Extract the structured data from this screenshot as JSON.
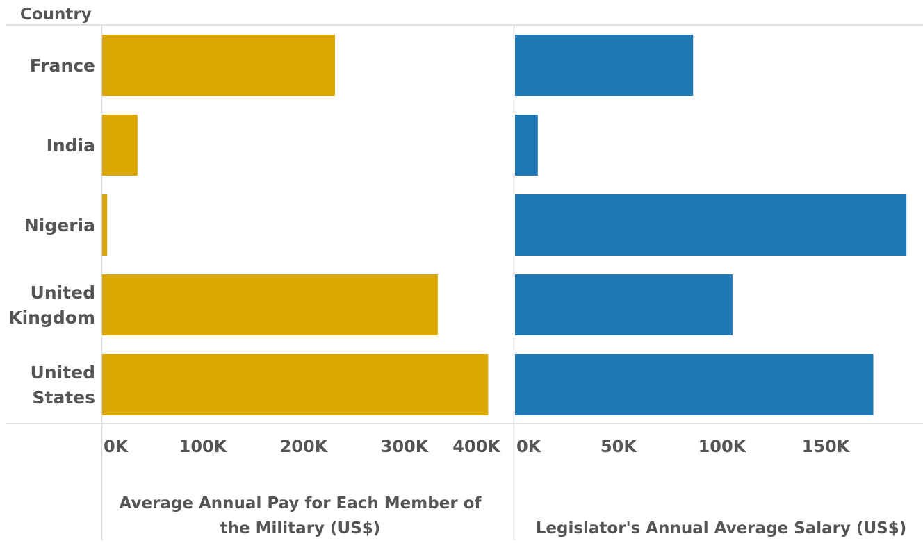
{
  "chart_data": {
    "type": "bar",
    "orientation": "horizontal",
    "row_header": "Country",
    "categories": [
      [
        "France"
      ],
      [
        "India"
      ],
      [
        "Nigeria"
      ],
      [
        "United",
        "Kingdom"
      ],
      [
        "United",
        "States"
      ]
    ],
    "panels": [
      {
        "name": "Average Annual Pay for Each Member of the Military (US$)",
        "axis_title_lines": [
          "Average Annual Pay for Each Member of",
          "the Military (US$)"
        ],
        "color": "#DAA800",
        "values": [
          231000,
          35000,
          5000,
          333000,
          383000
        ],
        "xlim": [
          0,
          400000
        ],
        "ticks": [
          0,
          100000,
          200000,
          300000,
          400000
        ],
        "tick_labels": [
          "0K",
          "100K",
          "200K",
          "300K",
          "400K"
        ]
      },
      {
        "name": "Legislator's Annual Average Salary (US$)",
        "axis_title_lines": [
          "Legislator's Annual Average Salary (US$)"
        ],
        "color": "#1F77B4",
        "values": [
          86000,
          11000,
          189000,
          105000,
          173000
        ],
        "xlim": [
          0,
          197000
        ],
        "ticks": [
          0,
          50000,
          100000,
          150000
        ],
        "tick_labels": [
          "0K",
          "50K",
          "100K",
          "150K"
        ]
      }
    ],
    "grid": false,
    "legend": "none"
  }
}
